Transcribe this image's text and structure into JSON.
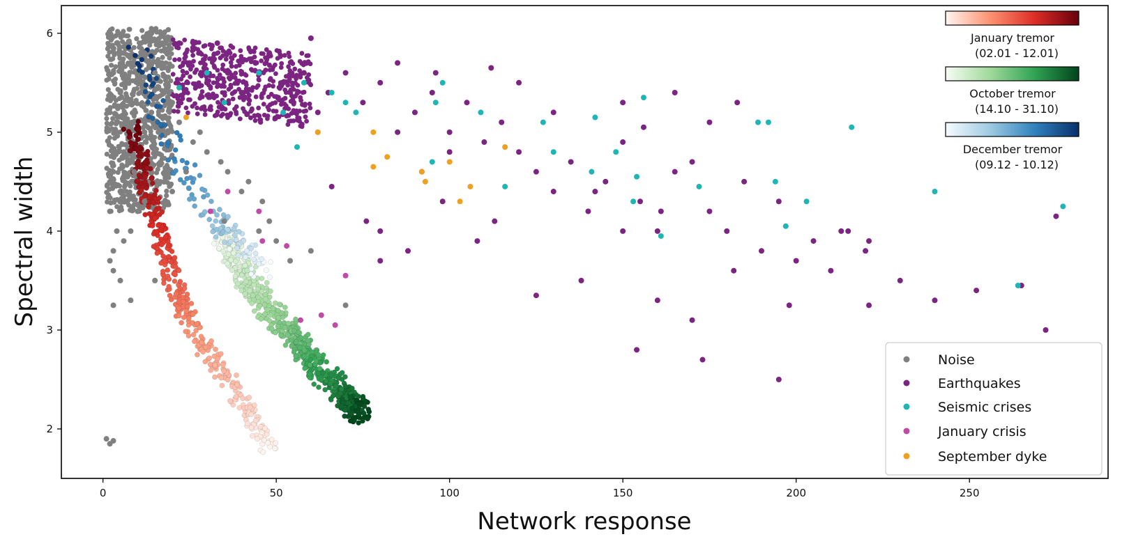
{
  "chart_data": {
    "type": "scatter",
    "xlabel": "Network response",
    "ylabel": "Spectral width",
    "xlim": [
      -12,
      290
    ],
    "ylim": [
      1.5,
      6.28
    ],
    "xticks": [
      0,
      50,
      100,
      150,
      200,
      250
    ],
    "yticks": [
      2,
      3,
      4,
      5,
      6
    ],
    "grid": false,
    "legend": {
      "position": "bottom-right",
      "entries": [
        {
          "name": "Noise",
          "color": "#808080"
        },
        {
          "name": "Earthquakes",
          "color": "#7b2481"
        },
        {
          "name": "Seismic crises",
          "color": "#1fb5b5"
        },
        {
          "name": "January crisis",
          "color": "#c04aa6"
        },
        {
          "name": "September dyke",
          "color": "#f0a020"
        }
      ]
    },
    "colorbars": [
      {
        "label_line1": "January tremor",
        "label_line2": "(02.01 - 12.01)",
        "colors": [
          "#fff5f0",
          "#fc9272",
          "#de2d26",
          "#67000d"
        ]
      },
      {
        "label_line1": "October tremor",
        "label_line2": "(14.10 - 31.10)",
        "colors": [
          "#f7fcf5",
          "#a1d99b",
          "#31a354",
          "#00441b"
        ]
      },
      {
        "label_line1": "December tremor",
        "label_line2": "(09.12 - 10.12)",
        "colors": [
          "#f7fbff",
          "#9ecae1",
          "#3182bd",
          "#08306b"
        ]
      }
    ],
    "series": [
      {
        "name": "Noise",
        "color": "#808080",
        "points": [
          [
            2,
            6.0
          ],
          [
            4,
            5.9
          ],
          [
            6,
            5.8
          ],
          [
            3,
            5.6
          ],
          [
            8,
            5.7
          ],
          [
            5,
            5.4
          ],
          [
            10,
            5.5
          ],
          [
            12,
            5.8
          ],
          [
            15,
            5.6
          ],
          [
            18,
            5.9
          ],
          [
            2,
            5.2
          ],
          [
            4,
            5.0
          ],
          [
            6,
            4.8
          ],
          [
            3,
            4.6
          ],
          [
            5,
            4.4
          ],
          [
            2,
            4.2
          ],
          [
            4,
            4.0
          ],
          [
            3,
            3.8
          ],
          [
            2,
            3.7
          ],
          [
            3,
            3.6
          ],
          [
            5,
            3.5
          ],
          [
            14,
            5.2
          ],
          [
            16,
            5.0
          ],
          [
            20,
            5.3
          ],
          [
            22,
            5.1
          ],
          [
            26,
            4.9
          ],
          [
            28,
            5.0
          ],
          [
            30,
            4.8
          ],
          [
            34,
            4.7
          ],
          [
            36,
            4.6
          ],
          [
            40,
            4.4
          ],
          [
            42,
            4.5
          ],
          [
            46,
            4.3
          ],
          [
            24,
            4.6
          ],
          [
            20,
            4.4
          ],
          [
            10,
            4.2
          ],
          [
            8,
            4.0
          ],
          [
            12,
            4.3
          ],
          [
            6,
            3.9
          ],
          [
            15,
            3.5
          ],
          [
            8,
            3.3
          ],
          [
            3,
            3.25
          ],
          [
            1,
            1.9
          ],
          [
            2,
            1.85
          ],
          [
            3,
            1.88
          ],
          [
            45,
            4.0
          ],
          [
            48,
            4.1
          ],
          [
            54,
            3.7
          ],
          [
            50,
            3.9
          ],
          [
            70,
            3.25
          ],
          [
            60,
            3.8
          ],
          [
            35,
            4.1
          ],
          [
            15,
            4.8
          ],
          [
            12,
            5.0
          ],
          [
            9,
            4.6
          ],
          [
            7,
            4.3
          ],
          [
            11,
            5.9
          ],
          [
            14,
            6.0
          ],
          [
            17,
            5.7
          ],
          [
            19,
            5.4
          ]
        ]
      },
      {
        "name": "Earthquakes",
        "color": "#7b2481",
        "points": [
          [
            22,
            5.9
          ],
          [
            25,
            5.7
          ],
          [
            28,
            5.8
          ],
          [
            30,
            5.5
          ],
          [
            33,
            5.9
          ],
          [
            36,
            5.6
          ],
          [
            40,
            5.4
          ],
          [
            44,
            5.7
          ],
          [
            48,
            5.8
          ],
          [
            52,
            5.5
          ],
          [
            55,
            5.3
          ],
          [
            58,
            5.6
          ],
          [
            62,
            5.2
          ],
          [
            65,
            5.4
          ],
          [
            70,
            5.6
          ],
          [
            75,
            5.3
          ],
          [
            80,
            5.5
          ],
          [
            85,
            5.0
          ],
          [
            90,
            5.2
          ],
          [
            95,
            5.4
          ],
          [
            100,
            5.0
          ],
          [
            105,
            5.3
          ],
          [
            110,
            4.9
          ],
          [
            115,
            5.1
          ],
          [
            120,
            4.8
          ],
          [
            125,
            4.6
          ],
          [
            130,
            4.4
          ],
          [
            135,
            4.7
          ],
          [
            140,
            4.2
          ],
          [
            145,
            4.5
          ],
          [
            150,
            4.0
          ],
          [
            155,
            4.3
          ],
          [
            160,
            4.0
          ],
          [
            165,
            4.6
          ],
          [
            170,
            4.7
          ],
          [
            175,
            4.2
          ],
          [
            180,
            4.0
          ],
          [
            185,
            4.5
          ],
          [
            190,
            3.8
          ],
          [
            195,
            4.3
          ],
          [
            200,
            3.7
          ],
          [
            205,
            3.9
          ],
          [
            210,
            3.6
          ],
          [
            215,
            4.0
          ],
          [
            220,
            3.8
          ],
          [
            230,
            3.5
          ],
          [
            240,
            3.3
          ],
          [
            252,
            3.4
          ],
          [
            265,
            3.45
          ],
          [
            272,
            3.0
          ],
          [
            275,
            4.15
          ],
          [
            198,
            3.25
          ],
          [
            195,
            2.5
          ],
          [
            173,
            2.7
          ],
          [
            154,
            2.8
          ],
          [
            125,
            3.35
          ],
          [
            138,
            3.5
          ],
          [
            160,
            3.3
          ],
          [
            170,
            3.1
          ],
          [
            182,
            3.6
          ],
          [
            113,
            4.1
          ],
          [
            98,
            4.3
          ],
          [
            80,
            4.0
          ],
          [
            80,
            3.7
          ],
          [
            88,
            3.8
          ],
          [
            66,
            4.45
          ],
          [
            76,
            4.1
          ],
          [
            108,
            3.9
          ],
          [
            92,
            4.6
          ],
          [
            100,
            4.8
          ],
          [
            130,
            5.2
          ],
          [
            150,
            5.3
          ],
          [
            165,
            5.4
          ],
          [
            175,
            5.1
          ],
          [
            183,
            5.3
          ],
          [
            120,
            5.5
          ],
          [
            112,
            5.65
          ],
          [
            96,
            5.6
          ],
          [
            85,
            5.7
          ],
          [
            60,
            5.95
          ],
          [
            150,
            4.9
          ],
          [
            156,
            5.05
          ],
          [
            142,
            4.4
          ],
          [
            161,
            4.2
          ],
          [
            221,
            3.25
          ],
          [
            221,
            3.9
          ],
          [
            213,
            4.0
          ]
        ]
      },
      {
        "name": "Seismic crises",
        "color": "#1fb5b5",
        "points": [
          [
            22,
            5.45
          ],
          [
            30,
            5.6
          ],
          [
            35,
            5.3
          ],
          [
            45,
            5.6
          ],
          [
            52,
            5.2
          ],
          [
            58,
            5.5
          ],
          [
            62,
            5.0
          ],
          [
            66,
            5.4
          ],
          [
            70,
            5.3
          ],
          [
            73,
            5.2
          ],
          [
            96,
            5.3
          ],
          [
            98,
            5.5
          ],
          [
            109,
            5.2
          ],
          [
            127,
            5.1
          ],
          [
            130,
            4.8
          ],
          [
            142,
            5.15
          ],
          [
            148,
            4.8
          ],
          [
            156,
            5.35
          ],
          [
            141,
            4.6
          ],
          [
            153,
            4.3
          ],
          [
            154,
            4.55
          ],
          [
            161,
            3.95
          ],
          [
            172,
            4.45
          ],
          [
            189,
            5.1
          ],
          [
            192,
            5.1
          ],
          [
            216,
            5.05
          ],
          [
            194,
            4.5
          ],
          [
            197,
            4.05
          ],
          [
            203,
            4.3
          ],
          [
            240,
            4.4
          ],
          [
            264,
            3.45
          ],
          [
            277,
            4.25
          ],
          [
            116,
            4.45
          ],
          [
            95,
            4.7
          ],
          [
            56,
            4.85
          ]
        ]
      },
      {
        "name": "January crisis",
        "color": "#c04aa6",
        "points": [
          [
            31,
            4.2
          ],
          [
            36,
            4.4
          ],
          [
            46,
            3.9
          ],
          [
            53,
            3.85
          ],
          [
            57,
            3.1
          ],
          [
            63,
            3.15
          ],
          [
            67,
            3.05
          ],
          [
            70,
            3.55
          ],
          [
            45,
            4.2
          ]
        ]
      },
      {
        "name": "September dyke",
        "color": "#f0a020",
        "points": [
          [
            24,
            5.15
          ],
          [
            62,
            5.0
          ],
          [
            78,
            4.65
          ],
          [
            78,
            5.0
          ],
          [
            82,
            4.75
          ],
          [
            92,
            4.6
          ],
          [
            93,
            4.5
          ],
          [
            100,
            4.7
          ],
          [
            103,
            4.3
          ],
          [
            106,
            4.45
          ],
          [
            116,
            4.85
          ]
        ]
      }
    ]
  }
}
